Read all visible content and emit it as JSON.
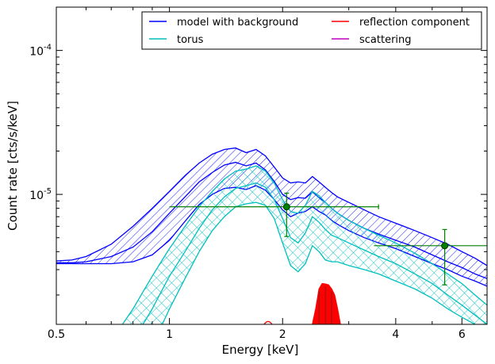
{
  "chart_data": {
    "type": "line",
    "title": "",
    "xlabel": "Energy [keV]",
    "ylabel": "Count rate [cts/s/keV]",
    "x_scale": "log",
    "y_scale": "log",
    "xlim": [
      0.5,
      7.0
    ],
    "ylim": [
      1.25e-06,
      0.0002
    ],
    "x_ticks": [
      {
        "value": 0.5,
        "label": "0.5"
      },
      {
        "value": 1,
        "label": "1"
      },
      {
        "value": 2,
        "label": "2"
      },
      {
        "value": 4,
        "label": "4"
      },
      {
        "value": 6,
        "label": "6"
      }
    ],
    "y_ticks": [
      {
        "value": 1e-05,
        "base": "10",
        "exp": "-5"
      },
      {
        "value": 0.0001,
        "base": "10",
        "exp": "-4"
      }
    ],
    "legend": {
      "placement": "top-right",
      "columns": 2,
      "entries": [
        {
          "name": "model with background",
          "color": "#0000ff"
        },
        {
          "name": "reflection component",
          "color": "#ff0000"
        },
        {
          "name": "torus",
          "color": "#00bfbf"
        },
        {
          "name": "scattering",
          "color": "#bf00bf"
        }
      ]
    },
    "series": [
      {
        "name": "model with background",
        "color": "#0000ff",
        "style": "band",
        "hatch": "diagonal",
        "x": [
          0.5,
          0.55,
          0.6,
          0.7,
          0.8,
          0.9,
          1.0,
          1.1,
          1.2,
          1.3,
          1.4,
          1.5,
          1.6,
          1.7,
          1.8,
          1.9,
          2.0,
          2.1,
          2.2,
          2.3,
          2.4,
          2.5,
          2.6,
          2.7,
          2.8,
          3.0,
          3.3,
          3.6,
          4.0,
          4.5,
          5.0,
          5.5,
          6.0,
          6.5,
          7.0
        ],
        "lower": [
          3.3e-06,
          3.3e-06,
          3.3e-06,
          3.3e-06,
          3.4e-06,
          3.8e-06,
          4.8e-06,
          6.5e-06,
          8.5e-06,
          1e-05,
          1.1e-05,
          1.12e-05,
          1.08e-05,
          1.15e-05,
          1.07e-05,
          9.2e-06,
          7.8e-06,
          7e-06,
          7.4e-06,
          7.6e-06,
          8.2e-06,
          7.6e-06,
          7.2e-06,
          6.6e-06,
          6.2e-06,
          5.6e-06,
          5e-06,
          4.6e-06,
          4.2e-06,
          3.7e-06,
          3.3e-06,
          3e-06,
          2.7e-06,
          2.5e-06,
          2.3e-06
        ],
        "central": [
          3.35e-06,
          3.35e-06,
          3.4e-06,
          3.7e-06,
          4.3e-06,
          5.5e-06,
          7.4e-06,
          9.6e-06,
          1.22e-05,
          1.42e-05,
          1.6e-05,
          1.67e-05,
          1.58e-05,
          1.65e-05,
          1.48e-05,
          1.23e-05,
          1e-05,
          9.2e-06,
          9.5e-06,
          9.4e-06,
          1.04e-05,
          9.5e-06,
          8.8e-06,
          8e-06,
          7.4e-06,
          6.6e-06,
          5.8e-06,
          5.3e-06,
          4.8e-06,
          4.3e-06,
          3.8e-06,
          3.4e-06,
          3.1e-06,
          2.8e-06,
          2.6e-06
        ],
        "upper": [
          3.45e-06,
          3.5e-06,
          3.7e-06,
          4.5e-06,
          6e-06,
          8e-06,
          1.05e-05,
          1.35e-05,
          1.65e-05,
          1.9e-05,
          2.05e-05,
          2.1e-05,
          1.95e-05,
          2.05e-05,
          1.85e-05,
          1.55e-05,
          1.3e-05,
          1.2e-05,
          1.22e-05,
          1.2e-05,
          1.33e-05,
          1.22e-05,
          1.12e-05,
          1.03e-05,
          9.6e-06,
          8.8e-06,
          7.8e-06,
          7e-06,
          6.3e-06,
          5.6e-06,
          5e-06,
          4.5e-06,
          4e-06,
          3.6e-06,
          3.2e-06
        ]
      },
      {
        "name": "torus",
        "color": "#00bfbf",
        "style": "band",
        "hatch": "cross",
        "x": [
          0.75,
          0.8,
          0.85,
          0.9,
          0.95,
          1.0,
          1.1,
          1.2,
          1.3,
          1.4,
          1.5,
          1.6,
          1.7,
          1.8,
          1.9,
          2.0,
          2.1,
          2.2,
          2.3,
          2.4,
          2.5,
          2.6,
          2.7,
          2.8,
          3.0,
          3.3,
          3.6,
          4.0,
          4.5,
          5.0,
          5.5,
          6.0,
          6.5,
          7.0
        ],
        "lower": [
          null,
          null,
          null,
          null,
          1.2e-06,
          1.6e-06,
          2.6e-06,
          4e-06,
          5.6e-06,
          7e-06,
          8.2e-06,
          8.6e-06,
          8.8e-06,
          8.4e-06,
          6.8e-06,
          4.6e-06,
          3.2e-06,
          2.9e-06,
          3.3e-06,
          4.4e-06,
          4e-06,
          3.5e-06,
          3.4e-06,
          3.4e-06,
          3.2e-06,
          3e-06,
          2.8e-06,
          2.5e-06,
          2.2e-06,
          1.9e-06,
          1.6e-06,
          1.4e-06,
          1.25e-06,
          1.1e-06
        ],
        "central": [
          null,
          null,
          1.25e-06,
          1.6e-06,
          2.1e-06,
          2.7e-06,
          4e-06,
          5.8e-06,
          7.8e-06,
          9.6e-06,
          1.1e-05,
          1.15e-05,
          1.2e-05,
          1.12e-05,
          9.2e-06,
          6.8e-06,
          5e-06,
          4.6e-06,
          5.4e-06,
          7e-06,
          6.4e-06,
          5.7e-06,
          5.2e-06,
          5e-06,
          4.6e-06,
          4.1e-06,
          3.7e-06,
          3.3e-06,
          2.8e-06,
          2.4e-06,
          2e-06,
          1.7e-06,
          1.45e-06,
          1.25e-06
        ],
        "upper": [
          1.25e-06,
          1.6e-06,
          2.1e-06,
          2.7e-06,
          3.4e-06,
          4.2e-06,
          6e-06,
          8.2e-06,
          1.05e-05,
          1.28e-05,
          1.45e-05,
          1.5e-05,
          1.58e-05,
          1.45e-05,
          1.2e-05,
          9.2e-06,
          7.6e-06,
          7.4e-06,
          8.4e-06,
          1.05e-05,
          9.8e-06,
          8.8e-06,
          8e-06,
          7.4e-06,
          6.6e-06,
          5.8e-06,
          5.2e-06,
          4.6e-06,
          3.9e-06,
          3.3e-06,
          2.8e-06,
          2.4e-06,
          2e-06,
          1.7e-06
        ]
      },
      {
        "name": "reflection component",
        "color": "#ff0000",
        "style": "band",
        "x": [
          2.4,
          2.45,
          2.5,
          2.55,
          2.6,
          2.65,
          2.7,
          2.75,
          2.8,
          2.85
        ],
        "lower": [
          1.25e-06,
          1.25e-06,
          1.25e-06,
          1.25e-06,
          1.25e-06,
          1.25e-06,
          1.25e-06,
          1.25e-06,
          1.25e-06,
          1.25e-06
        ],
        "upper": [
          1.25e-06,
          1.6e-06,
          2.2e-06,
          2.4e-06,
          2.38e-06,
          2.35e-06,
          2.2e-06,
          2e-06,
          1.6e-06,
          1.25e-06
        ],
        "bump_x": 1.83,
        "bump_y": 1.3e-06
      },
      {
        "name": "scattering",
        "color": "#bf00bf",
        "style": "line",
        "x": [],
        "values": []
      }
    ],
    "data_points": {
      "color": "#008000",
      "points": [
        {
          "x": 2.05,
          "y": 8.2e-06,
          "xerr": [
            1.0,
            3.6
          ],
          "yerr": [
            5.1e-06,
            1.02e-05
          ]
        },
        {
          "x": 5.4,
          "y": 4.4e-06,
          "xerr": [
            3.5,
            7.0
          ],
          "yerr": [
            2.35e-06,
            5.7e-06
          ]
        }
      ]
    }
  }
}
